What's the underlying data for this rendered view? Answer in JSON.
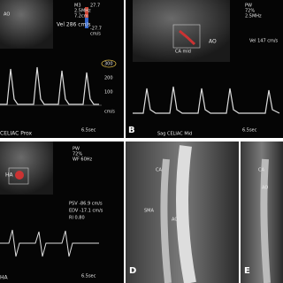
{
  "panels": [
    {
      "labels": [
        "AO",
        "M3",
        "2.5MHz",
        "7.2cm",
        "27.7",
        "-27.7",
        "cm/s",
        "Vel 286 cm/s",
        "300",
        "200",
        "100",
        "cm/s",
        "CELIAC Prox",
        "6.5sec"
      ]
    },
    {
      "labels": [
        "AO",
        "CA mid",
        "PW",
        "72%",
        "2.5MHz",
        "Vel 147 cm/s",
        "B",
        "Sag  CELIAC  Mid",
        "6.5sec"
      ]
    },
    {
      "labels": [
        "HA",
        "PW",
        "72%",
        "WF 60Hz",
        "PSV -86.9 cm/s",
        "EDV -17.1 cm/s",
        "RI   0.80",
        "HA",
        "6.5sec"
      ]
    },
    {
      "labels": [
        "CA",
        "SMA",
        "AO",
        "D"
      ]
    },
    {
      "labels": [
        "CA",
        "AO",
        "E"
      ]
    }
  ]
}
